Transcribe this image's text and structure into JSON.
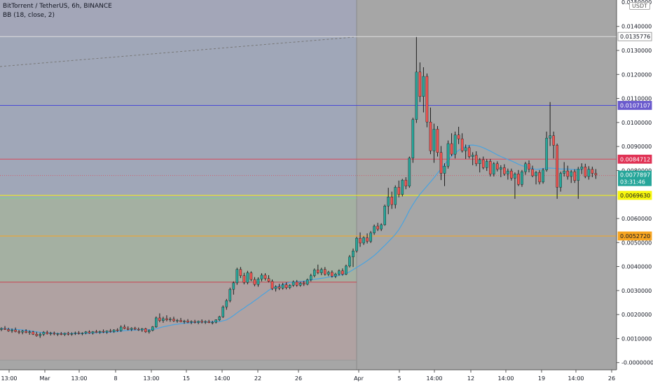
{
  "header": {
    "symbol": "BitTorrent / TetherUS, 6h, BINANCE",
    "indicator": "BB (18, close, 2)",
    "currency": "USDT",
    "axis_top": "0.0150000"
  },
  "colors": {
    "plot_bg": "#a6a6a6",
    "axis_bg": "#ffffff",
    "up": "#26a69a",
    "down": "#ef5350",
    "bb": "#4aa3df",
    "fib_blue_zone": "#9fa8c2",
    "fib_green_zone": "#a6b3a3",
    "fib_red_zone": "#b3a0a0",
    "line_blue": "#4a4ad6",
    "line_red": "#d94a5c",
    "line_yellow": "#f7f70c",
    "line_orange": "#f7a521",
    "line_white": "#dddddd",
    "line_green": "#7ddc7d"
  },
  "chart_data": {
    "type": "candlestick",
    "title": "BitTorrent / TetherUS, 6h, BINANCE",
    "indicator": "BB (18, close, 2)",
    "ylim": [
      -0.0003,
      0.0151
    ],
    "y_ticks": [
      "0.0140000",
      "0.0130000",
      "0.0120000",
      "0.0110000",
      "0.0100000",
      "0.0090000",
      "0.0080000",
      "0.0060000",
      "0.0050000",
      "0.0040000",
      "0.0030000",
      "0.0020000",
      "0.0010000",
      "-0.0000000"
    ],
    "x_ticks": [
      "13:00",
      "Mar",
      "13:00",
      "8",
      "13:00",
      "15",
      "14:00",
      "22",
      "26",
      "Apr",
      "5",
      "14:00",
      "12",
      "14:00",
      "19",
      "14:00",
      "26"
    ],
    "horizontal_levels": [
      {
        "label": "0.0135776",
        "value": 0.0135776,
        "color": "#dddddd"
      },
      {
        "label": "0.0107107",
        "value": 0.0107107,
        "color": "#4a4ad6"
      },
      {
        "label": "0.0084712",
        "value": 0.0084712,
        "color": "#d94a5c"
      },
      {
        "label": "0.0069630",
        "value": 0.006963,
        "color": "#f7f70c"
      },
      {
        "label": "0.0052720",
        "value": 0.005272,
        "color": "#f7a521"
      }
    ],
    "green_level": 0.00685,
    "red_level": 0.00335,
    "bottom_level": 0.0001,
    "current": {
      "price": "0.0077897",
      "countdown": "03:31:46",
      "value": 0.0077897
    },
    "candles": [
      [
        0.00138,
        0.00147,
        0.00131,
        0.00142
      ],
      [
        0.00142,
        0.00152,
        0.00136,
        0.00138
      ],
      [
        0.00138,
        0.00145,
        0.00128,
        0.00132
      ],
      [
        0.00132,
        0.00142,
        0.00124,
        0.00136
      ],
      [
        0.00136,
        0.00146,
        0.00126,
        0.00129
      ],
      [
        0.00129,
        0.00136,
        0.00119,
        0.00127
      ],
      [
        0.00127,
        0.00136,
        0.00118,
        0.00131
      ],
      [
        0.00131,
        0.00139,
        0.00122,
        0.00125
      ],
      [
        0.00125,
        0.00134,
        0.00116,
        0.00128
      ],
      [
        0.00128,
        0.00132,
        0.00115,
        0.00118
      ],
      [
        0.00118,
        0.00128,
        0.00108,
        0.00112
      ],
      [
        0.00112,
        0.00125,
        0.00103,
        0.00118
      ],
      [
        0.00118,
        0.00131,
        0.00111,
        0.00126
      ],
      [
        0.00126,
        0.00133,
        0.00117,
        0.0012
      ],
      [
        0.0012,
        0.00128,
        0.00113,
        0.00123
      ],
      [
        0.00123,
        0.00129,
        0.00114,
        0.00119
      ],
      [
        0.00119,
        0.00124,
        0.00111,
        0.00121
      ],
      [
        0.00121,
        0.00127,
        0.00114,
        0.00117
      ],
      [
        0.00117,
        0.00125,
        0.00111,
        0.00122
      ],
      [
        0.00122,
        0.00128,
        0.00113,
        0.00118
      ],
      [
        0.00118,
        0.00126,
        0.00112,
        0.00121
      ],
      [
        0.00121,
        0.00129,
        0.00115,
        0.00124
      ],
      [
        0.00124,
        0.00131,
        0.00117,
        0.00121
      ],
      [
        0.00121,
        0.00126,
        0.00114,
        0.00123
      ],
      [
        0.00123,
        0.00131,
        0.00118,
        0.00128
      ],
      [
        0.00128,
        0.00134,
        0.0012,
        0.00123
      ],
      [
        0.00123,
        0.00131,
        0.00117,
        0.00129
      ],
      [
        0.00129,
        0.00136,
        0.00123,
        0.00125
      ],
      [
        0.00125,
        0.00133,
        0.0012,
        0.0013
      ],
      [
        0.0013,
        0.00138,
        0.00123,
        0.00127
      ],
      [
        0.00127,
        0.00134,
        0.0012,
        0.00132
      ],
      [
        0.00132,
        0.0014,
        0.00125,
        0.00129
      ],
      [
        0.00129,
        0.00139,
        0.00124,
        0.00136
      ],
      [
        0.00136,
        0.00143,
        0.00128,
        0.00133
      ],
      [
        0.00133,
        0.00155,
        0.00128,
        0.00148
      ],
      [
        0.00148,
        0.00158,
        0.00139,
        0.00142
      ],
      [
        0.00142,
        0.00151,
        0.00134,
        0.00138
      ],
      [
        0.00138,
        0.00147,
        0.00131,
        0.00143
      ],
      [
        0.00143,
        0.00149,
        0.00135,
        0.00139
      ],
      [
        0.00139,
        0.00146,
        0.00132,
        0.00136
      ],
      [
        0.00136,
        0.00144,
        0.00128,
        0.00141
      ],
      [
        0.00141,
        0.00145,
        0.00124,
        0.00128
      ],
      [
        0.00128,
        0.00138,
        0.00121,
        0.00134
      ],
      [
        0.00134,
        0.00152,
        0.0013,
        0.00149
      ],
      [
        0.00149,
        0.00192,
        0.00145,
        0.00186
      ],
      [
        0.00186,
        0.00205,
        0.00168,
        0.00175
      ],
      [
        0.00175,
        0.00191,
        0.00166,
        0.00183
      ],
      [
        0.00183,
        0.00197,
        0.00172,
        0.00178
      ],
      [
        0.00178,
        0.00189,
        0.0017,
        0.00181
      ],
      [
        0.00181,
        0.00191,
        0.00169,
        0.00174
      ],
      [
        0.00174,
        0.00182,
        0.00166,
        0.00176
      ],
      [
        0.00176,
        0.00186,
        0.00168,
        0.0017
      ],
      [
        0.0017,
        0.00178,
        0.00162,
        0.00173
      ],
      [
        0.00173,
        0.00181,
        0.00164,
        0.00168
      ],
      [
        0.00168,
        0.00176,
        0.0016,
        0.00171
      ],
      [
        0.00171,
        0.00178,
        0.00163,
        0.00167
      ],
      [
        0.00167,
        0.00175,
        0.0016,
        0.00172
      ],
      [
        0.00172,
        0.0018,
        0.00163,
        0.00168
      ],
      [
        0.00168,
        0.00176,
        0.00161,
        0.00171
      ],
      [
        0.00171,
        0.00178,
        0.00164,
        0.00166
      ],
      [
        0.00166,
        0.00174,
        0.00159,
        0.00168
      ],
      [
        0.00168,
        0.0018,
        0.00163,
        0.00178
      ],
      [
        0.00178,
        0.00195,
        0.00173,
        0.00191
      ],
      [
        0.00191,
        0.00238,
        0.00186,
        0.00232
      ],
      [
        0.00232,
        0.00265,
        0.0022,
        0.00258
      ],
      [
        0.00258,
        0.00312,
        0.00251,
        0.00305
      ],
      [
        0.00305,
        0.00338,
        0.00283,
        0.00332
      ],
      [
        0.00332,
        0.00395,
        0.00324,
        0.00388
      ],
      [
        0.00388,
        0.00398,
        0.00352,
        0.00362
      ],
      [
        0.00362,
        0.00374,
        0.00326,
        0.00334
      ],
      [
        0.00334,
        0.00382,
        0.00326,
        0.00374
      ],
      [
        0.00374,
        0.0038,
        0.00339,
        0.00346
      ],
      [
        0.00346,
        0.00356,
        0.00318,
        0.00325
      ],
      [
        0.00325,
        0.00355,
        0.00316,
        0.00348
      ],
      [
        0.00348,
        0.00372,
        0.00338,
        0.00364
      ],
      [
        0.00364,
        0.00372,
        0.00342,
        0.0035
      ],
      [
        0.0035,
        0.00364,
        0.00334,
        0.00338
      ],
      [
        0.00338,
        0.00346,
        0.00302,
        0.00308
      ],
      [
        0.00308,
        0.00322,
        0.00296,
        0.00316
      ],
      [
        0.00316,
        0.00328,
        0.00302,
        0.0031
      ],
      [
        0.0031,
        0.00332,
        0.00304,
        0.00324
      ],
      [
        0.00324,
        0.00334,
        0.00305,
        0.00312
      ],
      [
        0.00312,
        0.00326,
        0.00306,
        0.00322
      ],
      [
        0.00322,
        0.00342,
        0.00316,
        0.00336
      ],
      [
        0.00336,
        0.00344,
        0.00316,
        0.00322
      ],
      [
        0.00322,
        0.00336,
        0.00316,
        0.00331
      ],
      [
        0.00331,
        0.0034,
        0.00319,
        0.00326
      ],
      [
        0.00326,
        0.0035,
        0.00322,
        0.00345
      ],
      [
        0.00345,
        0.0037,
        0.00338,
        0.00362
      ],
      [
        0.00362,
        0.00392,
        0.00355,
        0.00386
      ],
      [
        0.00386,
        0.00408,
        0.00368,
        0.00374
      ],
      [
        0.00374,
        0.00395,
        0.00364,
        0.00388
      ],
      [
        0.00388,
        0.00398,
        0.00362,
        0.00368
      ],
      [
        0.00368,
        0.00382,
        0.0036,
        0.00376
      ],
      [
        0.00376,
        0.00384,
        0.00354,
        0.0036
      ],
      [
        0.0036,
        0.00374,
        0.00352,
        0.00369
      ],
      [
        0.00369,
        0.00388,
        0.00362,
        0.00382
      ],
      [
        0.00382,
        0.00392,
        0.00362,
        0.00368
      ],
      [
        0.00368,
        0.00408,
        0.00364,
        0.00402
      ],
      [
        0.00402,
        0.00448,
        0.00396,
        0.0044
      ],
      [
        0.0044,
        0.00475,
        0.00398,
        0.00465
      ],
      [
        0.00465,
        0.00524,
        0.00458,
        0.00518
      ],
      [
        0.00518,
        0.00542,
        0.00482,
        0.00498
      ],
      [
        0.00498,
        0.00526,
        0.0049,
        0.0052
      ],
      [
        0.0052,
        0.00538,
        0.00496,
        0.00505
      ],
      [
        0.00505,
        0.00548,
        0.00498,
        0.0054
      ],
      [
        0.0054,
        0.00575,
        0.00532,
        0.00568
      ],
      [
        0.00568,
        0.00582,
        0.00548,
        0.00556
      ],
      [
        0.00556,
        0.0058,
        0.00548,
        0.00574
      ],
      [
        0.00574,
        0.00658,
        0.0057,
        0.00652
      ],
      [
        0.00652,
        0.00728,
        0.00618,
        0.0069
      ],
      [
        0.0069,
        0.00712,
        0.0064,
        0.00658
      ],
      [
        0.00658,
        0.00738,
        0.00642,
        0.0073
      ],
      [
        0.0073,
        0.00758,
        0.00688,
        0.007
      ],
      [
        0.007,
        0.00765,
        0.00692,
        0.0076
      ],
      [
        0.0076,
        0.00772,
        0.00722,
        0.00735
      ],
      [
        0.00735,
        0.00858,
        0.00728,
        0.00852
      ],
      [
        0.00852,
        0.0102,
        0.00832,
        0.01012
      ],
      [
        0.01012,
        0.01356,
        0.00998,
        0.0121
      ],
      [
        0.0121,
        0.0125,
        0.01085,
        0.01108
      ],
      [
        0.01108,
        0.0123,
        0.01042,
        0.01192
      ],
      [
        0.01192,
        0.01204,
        0.0098,
        0.01002
      ],
      [
        0.01002,
        0.01062,
        0.00868,
        0.00882
      ],
      [
        0.00882,
        0.00995,
        0.00832,
        0.00972
      ],
      [
        0.00972,
        0.00985,
        0.00858,
        0.00875
      ],
      [
        0.00875,
        0.00902,
        0.0076,
        0.00788
      ],
      [
        0.00788,
        0.0083,
        0.00735,
        0.00818
      ],
      [
        0.00818,
        0.00925,
        0.00808,
        0.00912
      ],
      [
        0.00912,
        0.00955,
        0.0086,
        0.00868
      ],
      [
        0.00868,
        0.00962,
        0.0085,
        0.00948
      ],
      [
        0.00948,
        0.00982,
        0.0091,
        0.00932
      ],
      [
        0.00932,
        0.00955,
        0.00875,
        0.00882
      ],
      [
        0.00882,
        0.00908,
        0.00848,
        0.00895
      ],
      [
        0.00895,
        0.00905,
        0.0085,
        0.00858
      ],
      [
        0.00858,
        0.00876,
        0.00822,
        0.00864
      ],
      [
        0.00864,
        0.0088,
        0.00818,
        0.00828
      ],
      [
        0.00828,
        0.00852,
        0.00792,
        0.00845
      ],
      [
        0.00845,
        0.00858,
        0.00805,
        0.00812
      ],
      [
        0.00812,
        0.00848,
        0.00798,
        0.00838
      ],
      [
        0.00838,
        0.00848,
        0.00775,
        0.00785
      ],
      [
        0.00785,
        0.00835,
        0.00775,
        0.00828
      ],
      [
        0.00828,
        0.00838,
        0.00796,
        0.00805
      ],
      [
        0.00805,
        0.00822,
        0.00772,
        0.00812
      ],
      [
        0.00812,
        0.00826,
        0.00778,
        0.00786
      ],
      [
        0.00786,
        0.00808,
        0.00762,
        0.00798
      ],
      [
        0.00798,
        0.00808,
        0.00758,
        0.00768
      ],
      [
        0.00768,
        0.00792,
        0.00682,
        0.00786
      ],
      [
        0.00786,
        0.00802,
        0.00735,
        0.00742
      ],
      [
        0.00742,
        0.00802,
        0.00732,
        0.00795
      ],
      [
        0.00795,
        0.00836,
        0.00782,
        0.00828
      ],
      [
        0.00828,
        0.00842,
        0.00792,
        0.00805
      ],
      [
        0.00805,
        0.0082,
        0.00772,
        0.00778
      ],
      [
        0.00778,
        0.00798,
        0.00742,
        0.00792
      ],
      [
        0.00792,
        0.00802,
        0.00742,
        0.00752
      ],
      [
        0.00752,
        0.0081,
        0.00745,
        0.00802
      ],
      [
        0.00802,
        0.00962,
        0.00795,
        0.00935
      ],
      [
        0.00935,
        0.01085,
        0.00902,
        0.00945
      ],
      [
        0.00945,
        0.00962,
        0.0085,
        0.00905
      ],
      [
        0.00905,
        0.00912,
        0.00682,
        0.0073
      ],
      [
        0.0073,
        0.00795,
        0.00712,
        0.00788
      ],
      [
        0.00788,
        0.00835,
        0.00775,
        0.00798
      ],
      [
        0.00798,
        0.0082,
        0.00762,
        0.00775
      ],
      [
        0.00775,
        0.00802,
        0.00748,
        0.00795
      ],
      [
        0.00795,
        0.00805,
        0.00748,
        0.00758
      ],
      [
        0.00758,
        0.00815,
        0.00682,
        0.00806
      ],
      [
        0.00806,
        0.0083,
        0.00785,
        0.00815
      ],
      [
        0.00815,
        0.00828,
        0.00768,
        0.00775
      ],
      [
        0.00775,
        0.00818,
        0.00762,
        0.00805
      ],
      [
        0.00805,
        0.00816,
        0.00772,
        0.00788
      ],
      [
        0.00788,
        0.00806,
        0.00765,
        0.00782
      ]
    ],
    "bb_basis": [
      0.00142,
      0.00141,
      0.0014,
      0.00139,
      0.00138,
      0.00137,
      0.00136,
      0.00134,
      0.00132,
      0.0013,
      0.00128,
      0.00126,
      0.00125,
      0.00124,
      0.00123,
      0.00122,
      0.00121,
      0.00121,
      0.00121,
      0.00121,
      0.00121,
      0.00121,
      0.00121,
      0.00121,
      0.00122,
      0.00122,
      0.00123,
      0.00124,
      0.00125,
      0.00126,
      0.00126,
      0.00127,
      0.00128,
      0.00129,
      0.00131,
      0.00133,
      0.00134,
      0.00135,
      0.00136,
      0.00136,
      0.00137,
      0.00137,
      0.00137,
      0.00138,
      0.00141,
      0.00145,
      0.00149,
      0.00152,
      0.00155,
      0.00158,
      0.0016,
      0.00162,
      0.00164,
      0.00165,
      0.00166,
      0.00168,
      0.00168,
      0.00169,
      0.00169,
      0.00169,
      0.0017,
      0.0017,
      0.00171,
      0.00174,
      0.00178,
      0.00186,
      0.00196,
      0.00207,
      0.00218,
      0.00227,
      0.00238,
      0.00247,
      0.00258,
      0.00268,
      0.0028,
      0.0029,
      0.00301,
      0.00309,
      0.00315,
      0.00319,
      0.00325,
      0.0033,
      0.00334,
      0.00335,
      0.00337,
      0.00338,
      0.00339,
      0.00342,
      0.00344,
      0.00347,
      0.00349,
      0.00351,
      0.00353,
      0.00356,
      0.00358,
      0.0036,
      0.00363,
      0.00366,
      0.00371,
      0.00378,
      0.00387,
      0.00396,
      0.00405,
      0.00414,
      0.00424,
      0.00435,
      0.00446,
      0.00459,
      0.00474,
      0.00488,
      0.00503,
      0.00518,
      0.00534,
      0.00554,
      0.00578,
      0.00605,
      0.00634,
      0.00658,
      0.00681,
      0.00701,
      0.00718,
      0.00735,
      0.00752,
      0.0077,
      0.00789,
      0.00807,
      0.00826,
      0.00843,
      0.0086,
      0.00872,
      0.00884,
      0.00893,
      0.009,
      0.00905,
      0.00906,
      0.00904,
      0.009,
      0.00895,
      0.00888,
      0.00881,
      0.00873,
      0.00865,
      0.00858,
      0.00852,
      0.00846,
      0.0084,
      0.00833,
      0.00826,
      0.0082,
      0.00816,
      0.00812,
      0.00808,
      0.00805,
      0.00806,
      0.00808,
      0.0081,
      0.0081,
      0.00809,
      0.00808,
      0.00806,
      0.00806,
      0.00806,
      0.00805,
      0.00804,
      0.00803,
      0.00802
    ]
  }
}
